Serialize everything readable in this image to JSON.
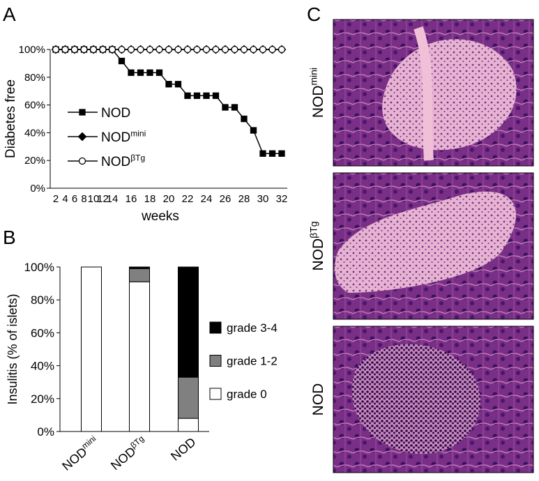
{
  "panels": {
    "letters": [
      "A",
      "B",
      "C"
    ],
    "image_labels": [
      {
        "text": "NOD",
        "sup": "mini"
      },
      {
        "text": "NOD",
        "sup": "βTg"
      },
      {
        "text": "NOD",
        "sup": null
      }
    ]
  },
  "chart_data": [
    {
      "type": "line",
      "ylabel": "Diabetes free",
      "xlabel": "weeks",
      "categories": [
        "2",
        "4",
        "6",
        "8",
        "10",
        "12",
        "14",
        null,
        "16",
        null,
        "18",
        null,
        "20",
        null,
        "22",
        null,
        "24",
        null,
        "26",
        null,
        "28",
        null,
        "30",
        null,
        "32"
      ],
      "ylim": [
        0,
        100
      ],
      "yticks": [
        {
          "value": 0,
          "label": "0%"
        },
        {
          "value": 20,
          "label": "20%"
        },
        {
          "value": 40,
          "label": "40%"
        },
        {
          "value": 60,
          "label": "60%"
        },
        {
          "value": 80,
          "label": "80%"
        },
        {
          "value": 100,
          "label": "100%"
        }
      ],
      "legend": "left",
      "series": [
        {
          "name": "NOD",
          "name_sup": null,
          "color": "#000000",
          "marker": "square",
          "marker_fill": "#000000",
          "values": [
            100,
            100,
            100,
            100,
            100,
            100,
            100,
            91.7,
            83.3,
            83.3,
            83.3,
            83.3,
            75,
            75,
            66.7,
            66.7,
            66.7,
            66.7,
            58.3,
            58.3,
            50,
            41.7,
            25,
            25,
            25
          ]
        },
        {
          "name": "NOD",
          "name_sup": "mini",
          "color": "#000000",
          "marker": "diamond",
          "marker_fill": "#000000",
          "values": [
            100,
            100,
            100,
            100,
            100,
            100,
            100,
            100,
            100,
            100,
            100,
            100,
            100,
            100,
            100,
            100,
            100,
            100,
            100,
            100,
            100,
            100,
            100,
            100,
            100
          ]
        },
        {
          "name": "NOD",
          "name_sup": "βTg",
          "color": "#000000",
          "marker": "circle",
          "marker_fill": "#ffffff",
          "values": [
            100,
            100,
            100,
            100,
            100,
            100,
            100,
            100,
            100,
            100,
            100,
            100,
            100,
            100,
            100,
            100,
            100,
            100,
            100,
            100,
            100,
            100,
            100,
            100,
            100
          ]
        }
      ]
    },
    {
      "type": "stacked_bar",
      "ylabel": "Insulitis (% of islets)",
      "categories": [
        {
          "text": "NOD",
          "sup": "mini"
        },
        {
          "text": "NOD",
          "sup": "βTg"
        },
        {
          "text": "NOD",
          "sup": null
        }
      ],
      "ylim": [
        0,
        100
      ],
      "yticks": [
        {
          "value": 0,
          "label": "0%"
        },
        {
          "value": 20,
          "label": "20%"
        },
        {
          "value": 40,
          "label": "40%"
        },
        {
          "value": 60,
          "label": "60%"
        },
        {
          "value": 80,
          "label": "80%"
        },
        {
          "value": 100,
          "label": "100%"
        }
      ],
      "legend": "right",
      "series": [
        {
          "name": "grade 0",
          "color": "#ffffff",
          "values": [
            100,
            91,
            8
          ]
        },
        {
          "name": "grade 1-2",
          "color": "#808080",
          "values": [
            0,
            8,
            25
          ]
        },
        {
          "name": "grade 3-4",
          "color": "#000000",
          "values": [
            0,
            1,
            67
          ]
        }
      ]
    }
  ]
}
